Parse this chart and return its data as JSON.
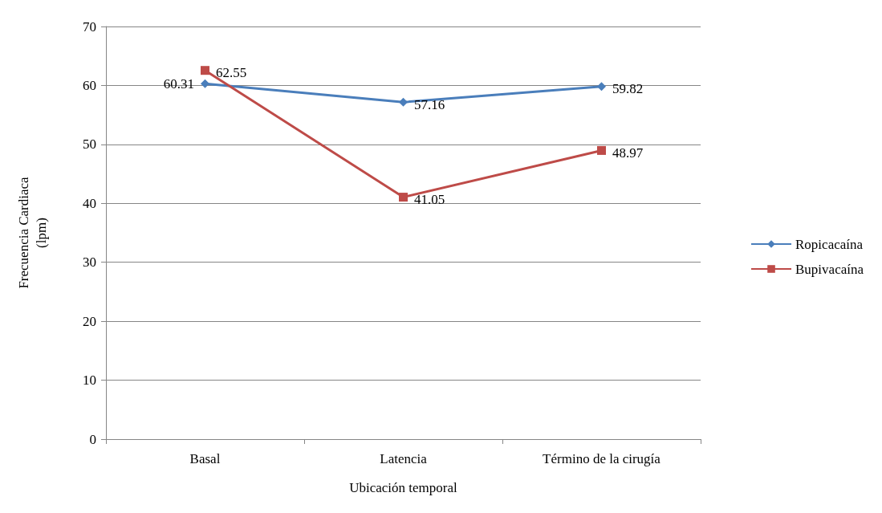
{
  "chart_data": {
    "type": "line",
    "xlabel": "Ubicación temporal",
    "ylabel": "Frecuencia Cardiaca\n(lpm)",
    "categories": [
      "Basal",
      "Latencia",
      "Término de la cirugía"
    ],
    "series": [
      {
        "name": "Ropicacaína",
        "color": "#4a7ebb",
        "marker": "diamond",
        "values": [
          60.31,
          57.16,
          59.82
        ]
      },
      {
        "name": "Bupivacaína",
        "color": "#be4b48",
        "marker": "square",
        "values": [
          62.55,
          41.05,
          48.97
        ]
      }
    ],
    "ylim": [
      0,
      70
    ],
    "yticks": [
      0,
      10,
      20,
      30,
      40,
      50,
      60,
      70
    ],
    "grid": "y",
    "legend": "right",
    "data_labels": true
  }
}
